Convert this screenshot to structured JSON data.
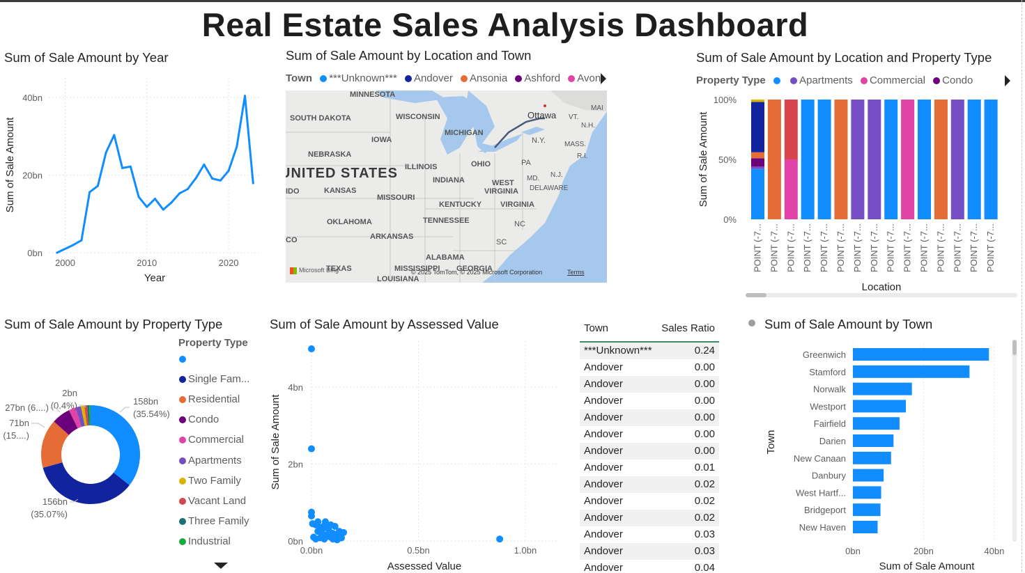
{
  "dashboard_title": "Real Estate Sales Analysis Dashboard",
  "colors": {
    "blue": "#118dff",
    "navy": "#12239e",
    "orange": "#e66c37",
    "purple": "#6b007b",
    "pink": "#e044a7",
    "violet": "#744ec2",
    "gold": "#d9b300",
    "red": "#d64550",
    "teal": "#197278",
    "green": "#1aab40",
    "lightblue": "#4a8ddc"
  },
  "charts": {
    "year_line": {
      "title": "Sum of Sale Amount by Year",
      "chart_data": {
        "type": "line",
        "title": "Sum of Sale Amount by Year",
        "xlabel": "Year",
        "ylabel": "Sum of Sale Amount",
        "x": [
          1999,
          2001,
          2002,
          2003,
          2004,
          2005,
          2006,
          2007,
          2008,
          2009,
          2010,
          2011,
          2012,
          2013,
          2014,
          2015,
          2016,
          2017,
          2018,
          2019,
          2020,
          2021,
          2022,
          2023
        ],
        "values": [
          0,
          2,
          3.2,
          15.6,
          17.2,
          25.8,
          30.3,
          21.8,
          22.2,
          14.4,
          11.8,
          13.9,
          11.1,
          12.9,
          15.3,
          16.4,
          19.2,
          22.7,
          19.1,
          18.6,
          21.1,
          27.3,
          40.4,
          17.9
        ],
        "xlim": [
          1998,
          2024
        ],
        "ylim": [
          0,
          45
        ],
        "xticks": [
          2000,
          2010,
          2020
        ],
        "ytick_labels": [
          "0bn",
          "20bn",
          "40bn"
        ]
      }
    },
    "map": {
      "title": "Sum of Sale Amount by Location and Town",
      "legend_title": "Town",
      "legend": [
        "***Unknown***",
        "Andover",
        "Ansonia",
        "Ashford",
        "Avon"
      ],
      "labels": [
        "MINNESOTA",
        "SOUTH DAKOTA",
        "WISCONSIN",
        "MICHIGAN",
        "Ottawa",
        "MAI",
        "VT.",
        "N.H.",
        "N.Y.",
        "MASS.",
        "R.I.",
        "NEBRASKA",
        "IOWA",
        "UNITED STATES",
        "ILLINOIS",
        "OHIO",
        "PA",
        "N.J.",
        "KANSAS",
        "MISSOURI",
        "INDIANA",
        "WEST",
        "VIRGINIA",
        "MD.",
        "DELAWARE",
        "KENTUCKY",
        "VIRGINIA",
        "OKLAHOMA",
        "TENNESSEE",
        "NC",
        "ARKANSAS",
        "SC",
        "ALABAMA",
        "TEXAS",
        "MISSISSIPPI",
        "GEORGIA",
        "LOUISIANA",
        "IDO",
        "CO"
      ],
      "copyright": "© 2025 TomTom, © 2025 Microsoft Corporation",
      "terms": "Terms",
      "bing": "Microsoft Bing"
    },
    "location_stacked": {
      "title": "Sum of Sale Amount by Location and Property Type",
      "legend_title": "Property Type",
      "legend": [
        "",
        "Apartments",
        "Commercial",
        "Condo"
      ],
      "chart_data": {
        "type": "bar",
        "stacked": "100%",
        "title": "Sum of Sale Amount by Location and Property Type",
        "xlabel": "Location",
        "ylabel": "Sum of Sale Amount",
        "categories": [
          "POINT (-7...",
          "POINT (-7...",
          "POINT (-7...",
          "POINT (-7...",
          "POINT (-7...",
          "POINT (-7...",
          "POINT (-7...",
          "POINT (-7...",
          "POINT (-7...",
          "POINT (-7...",
          "POINT (-7...",
          "POINT (-7...",
          "POINT (-7...",
          "POINT (-7...",
          "POINT (-7..."
        ],
        "ytick_labels": [
          "0%",
          "50%",
          "100%"
        ],
        "stacks": [
          [
            {
              "type": "",
              "value": 42,
              "color": "#118dff"
            },
            {
              "type": "Apartments",
              "value": 2,
              "color": "#744ec2"
            },
            {
              "type": "Condo",
              "value": 7,
              "color": "#6b007b"
            },
            {
              "type": "Residential",
              "value": 5,
              "color": "#e66c37"
            },
            {
              "type": "Single Family",
              "value": 42,
              "color": "#12239e"
            },
            {
              "type": "Two Family",
              "value": 2,
              "color": "#d9b300"
            }
          ],
          [
            {
              "type": "Residential",
              "value": 100,
              "color": "#e66c37"
            }
          ],
          [
            {
              "type": "Commercial",
              "value": 50,
              "color": "#e044a7"
            },
            {
              "type": "Vacant Land",
              "value": 50,
              "color": "#d64550"
            }
          ],
          [
            {
              "type": "",
              "value": 100,
              "color": "#118dff"
            }
          ],
          [
            {
              "type": "",
              "value": 100,
              "color": "#118dff"
            }
          ],
          [
            {
              "type": "Residential",
              "value": 100,
              "color": "#e66c37"
            }
          ],
          [
            {
              "type": "Apartments",
              "value": 100,
              "color": "#744ec2"
            }
          ],
          [
            {
              "type": "Apartments",
              "value": 100,
              "color": "#744ec2"
            }
          ],
          [
            {
              "type": "",
              "value": 100,
              "color": "#118dff"
            }
          ],
          [
            {
              "type": "Commercial",
              "value": 100,
              "color": "#e044a7"
            }
          ],
          [
            {
              "type": "",
              "value": 100,
              "color": "#118dff"
            }
          ],
          [
            {
              "type": "Residential",
              "value": 100,
              "color": "#e66c37"
            }
          ],
          [
            {
              "type": "Apartments",
              "value": 100,
              "color": "#744ec2"
            }
          ],
          [
            {
              "type": "",
              "value": 100,
              "color": "#118dff"
            }
          ],
          [
            {
              "type": "",
              "value": 100,
              "color": "#118dff"
            }
          ]
        ]
      }
    },
    "property_donut": {
      "title": "Sum of Sale Amount by Property Type",
      "legend_title": "Property Type",
      "legend": [
        {
          "label": "",
          "color": "#118dff"
        },
        {
          "label": "Single Fam...",
          "color": "#12239e"
        },
        {
          "label": "Residential",
          "color": "#e66c37"
        },
        {
          "label": "Condo",
          "color": "#6b007b"
        },
        {
          "label": "Commercial",
          "color": "#e044a7"
        },
        {
          "label": "Apartments",
          "color": "#744ec2"
        },
        {
          "label": "Two Family",
          "color": "#d9b300"
        },
        {
          "label": "Vacant Land",
          "color": "#d64550"
        },
        {
          "label": "Three Family",
          "color": "#197278"
        },
        {
          "label": "Industrial",
          "color": "#1aab40"
        }
      ],
      "data_labels": {
        "a1": "158bn",
        "a2": "(35.54%)",
        "b1": "156bn",
        "b2": "(35.07%)",
        "c1": "71bn",
        "c2": "(15....)",
        "d1": "27bn (6....)",
        "e1": "2bn",
        "e2": "(0.4%)"
      },
      "chart_data": {
        "type": "pie",
        "donut": true,
        "title": "Sum of Sale Amount by Property Type",
        "slices": [
          {
            "label": "",
            "value": 158,
            "percent": 35.54,
            "color": "#118dff"
          },
          {
            "label": "Single Family",
            "value": 156,
            "percent": 35.07,
            "color": "#12239e"
          },
          {
            "label": "Residential",
            "value": 71,
            "percent": 15.9,
            "color": "#e66c37"
          },
          {
            "label": "Condo",
            "value": 27,
            "percent": 6.1,
            "color": "#6b007b"
          },
          {
            "label": "Commercial",
            "value": 10,
            "percent": 2.2,
            "color": "#e044a7"
          },
          {
            "label": "Apartments",
            "value": 8,
            "percent": 1.8,
            "color": "#744ec2"
          },
          {
            "label": "Two Family",
            "value": 5,
            "percent": 1.1,
            "color": "#d9b300"
          },
          {
            "label": "Vacant Land",
            "value": 4,
            "percent": 0.9,
            "color": "#d64550"
          },
          {
            "label": "Three Family",
            "value": 3,
            "percent": 0.7,
            "color": "#197278"
          },
          {
            "label": "Industrial",
            "value": 2,
            "percent": 0.4,
            "color": "#1aab40"
          }
        ]
      }
    },
    "assessed_scatter": {
      "title": "Sum of Sale Amount by Assessed Value",
      "chart_data": {
        "type": "scatter",
        "title": "Sum of Sale Amount by Assessed Value",
        "xlabel": "Assessed Value",
        "ylabel": "Sum of Sale Amount",
        "xlim": [
          0,
          1.15
        ],
        "ylim": [
          0,
          5.2
        ],
        "xtick_labels": [
          "0.0bn",
          "0.5bn",
          "1.0bn"
        ],
        "ytick_labels": [
          "0bn",
          "2bn",
          "4bn"
        ],
        "points": [
          [
            0.0,
            5.0
          ],
          [
            0.0,
            2.4
          ],
          [
            0.0,
            0.75
          ],
          [
            0.0,
            0.65
          ],
          [
            0.005,
            0.45
          ],
          [
            0.02,
            0.42
          ],
          [
            0.03,
            0.25
          ],
          [
            0.04,
            0.35
          ],
          [
            0.05,
            0.2
          ],
          [
            0.06,
            0.4
          ],
          [
            0.07,
            0.15
          ],
          [
            0.08,
            0.3
          ],
          [
            0.09,
            0.42
          ],
          [
            0.1,
            0.2
          ],
          [
            0.11,
            0.38
          ],
          [
            0.12,
            0.1
          ],
          [
            0.13,
            0.25
          ],
          [
            0.14,
            0.08
          ],
          [
            0.15,
            0.22
          ],
          [
            0.01,
            0.1
          ],
          [
            0.02,
            0.05
          ],
          [
            0.04,
            0.08
          ],
          [
            0.06,
            0.05
          ],
          [
            0.08,
            0.12
          ],
          [
            0.1,
            0.05
          ],
          [
            0.12,
            0.03
          ],
          [
            0.03,
            0.5
          ],
          [
            0.065,
            0.5
          ],
          [
            0.09,
            0.1
          ],
          [
            0.11,
            0.15
          ],
          [
            0.05,
            0.3
          ],
          [
            0.88,
            0.05
          ]
        ]
      }
    },
    "ratio_table": {
      "headers": {
        "town": "Town",
        "ratio": "Sales Ratio"
      },
      "rows": [
        {
          "town": "***Unknown***",
          "ratio": "0.24"
        },
        {
          "town": "Andover",
          "ratio": "0.00"
        },
        {
          "town": "Andover",
          "ratio": "0.00"
        },
        {
          "town": "Andover",
          "ratio": "0.00"
        },
        {
          "town": "Andover",
          "ratio": "0.00"
        },
        {
          "town": "Andover",
          "ratio": "0.00"
        },
        {
          "town": "Andover",
          "ratio": "0.00"
        },
        {
          "town": "Andover",
          "ratio": "0.01"
        },
        {
          "town": "Andover",
          "ratio": "0.02"
        },
        {
          "town": "Andover",
          "ratio": "0.02"
        },
        {
          "town": "Andover",
          "ratio": "0.02"
        },
        {
          "town": "Andover",
          "ratio": "0.03"
        },
        {
          "town": "Andover",
          "ratio": "0.03"
        },
        {
          "town": "Andover",
          "ratio": "0.04"
        }
      ]
    },
    "town_bar": {
      "title": "Sum of Sale Amount by Town",
      "chart_data": {
        "type": "bar",
        "orientation": "horizontal",
        "title": "Sum of Sale Amount by Town",
        "xlabel": "Sum of Sale Amount",
        "ylabel": "Town",
        "categories": [
          "Greenwich",
          "Stamford",
          "Norwalk",
          "Westport",
          "Fairfield",
          "Darien",
          "New Canaan",
          "Danbury",
          "West Hartf...",
          "Bridgeport",
          "New Haven"
        ],
        "values": [
          38.5,
          33.0,
          16.7,
          15.0,
          13.2,
          11.5,
          10.8,
          8.7,
          8.0,
          7.8,
          7.0
        ],
        "xlim": [
          0,
          42
        ],
        "xtick_labels": [
          "0bn",
          "20bn",
          "40bn"
        ]
      }
    }
  }
}
